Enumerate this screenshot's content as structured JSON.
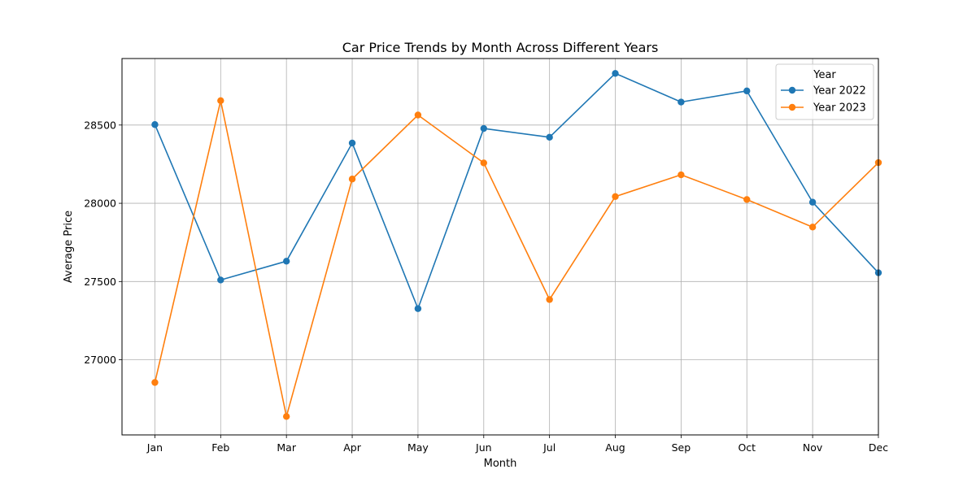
{
  "chart_data": {
    "type": "line",
    "title": "Car Price Trends by Month Across Different Years",
    "xlabel": "Month",
    "ylabel": "Average Price",
    "categories": [
      "Jan",
      "Feb",
      "Mar",
      "Apr",
      "May",
      "Jun",
      "Jul",
      "Aug",
      "Sep",
      "Oct",
      "Nov",
      "Dec"
    ],
    "ylim": [
      26520,
      28925
    ],
    "yticks": [
      27000,
      27500,
      28000,
      28500
    ],
    "grid": true,
    "legend": {
      "title": "Year",
      "placement": "top-right"
    },
    "series": [
      {
        "name": "Year 2022",
        "color": "#1f77b4",
        "values": [
          28503,
          27510,
          27630,
          28385,
          27327,
          28478,
          28422,
          28830,
          28647,
          28718,
          28007,
          27556
        ]
      },
      {
        "name": "Year 2023",
        "color": "#ff7f0e",
        "values": [
          26855,
          28656,
          26638,
          28155,
          28564,
          28258,
          27385,
          28043,
          28182,
          28024,
          27848,
          28260
        ]
      }
    ]
  }
}
